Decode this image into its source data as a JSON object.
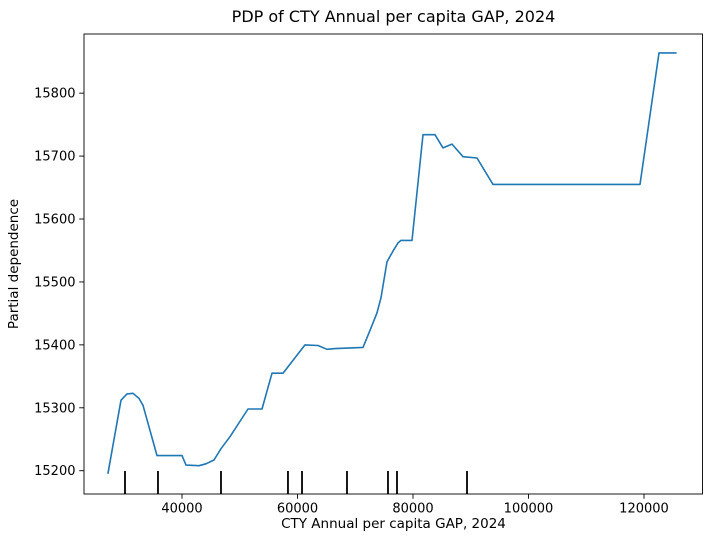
{
  "chart_data": {
    "type": "line",
    "title": "PDP of CTY Annual per capita GAP, 2024",
    "xlabel": "CTY Annual per capita GAP, 2024",
    "ylabel": "Partial dependence",
    "legend_position": "none",
    "grid": false,
    "line_color": "#1f77b4",
    "rug_color": "#000000",
    "xlim": [
      23030,
      130130
    ],
    "ylim": [
      15163,
      15894
    ],
    "xticks": [
      40000,
      60000,
      80000,
      100000,
      120000
    ],
    "yticks": [
      15200,
      15300,
      15400,
      15500,
      15600,
      15700,
      15800
    ],
    "series": [
      {
        "name": "partial-dependence",
        "x": [
          27190,
          29440,
          30480,
          31520,
          32560,
          33250,
          35670,
          40000,
          40690,
          42940,
          44160,
          45540,
          46750,
          48310,
          51430,
          53850,
          55580,
          57490,
          61300,
          63550,
          65110,
          66490,
          71340,
          72730,
          73760,
          74460,
          75500,
          76530,
          77400,
          77920,
          79820,
          81730,
          83810,
          85190,
          86750,
          88660,
          91080,
          93850,
          119300,
          122600,
          125540
        ],
        "y": [
          15196,
          15312,
          15322,
          15323,
          15315,
          15304,
          15224,
          15224,
          15209,
          15208,
          15211,
          15217,
          15235,
          15254,
          15298,
          15298,
          15355,
          15355,
          15400,
          15399,
          15393,
          15394,
          15396,
          15427,
          15451,
          15475,
          15532,
          15549,
          15562,
          15566,
          15566,
          15734,
          15734,
          15713,
          15719,
          15699,
          15697,
          15655,
          15655,
          15864,
          15864
        ]
      }
    ],
    "rug_x": [
      30130,
      35840,
      46750,
      58350,
      60780,
      68570,
      75670,
      77230,
      89350
    ]
  }
}
